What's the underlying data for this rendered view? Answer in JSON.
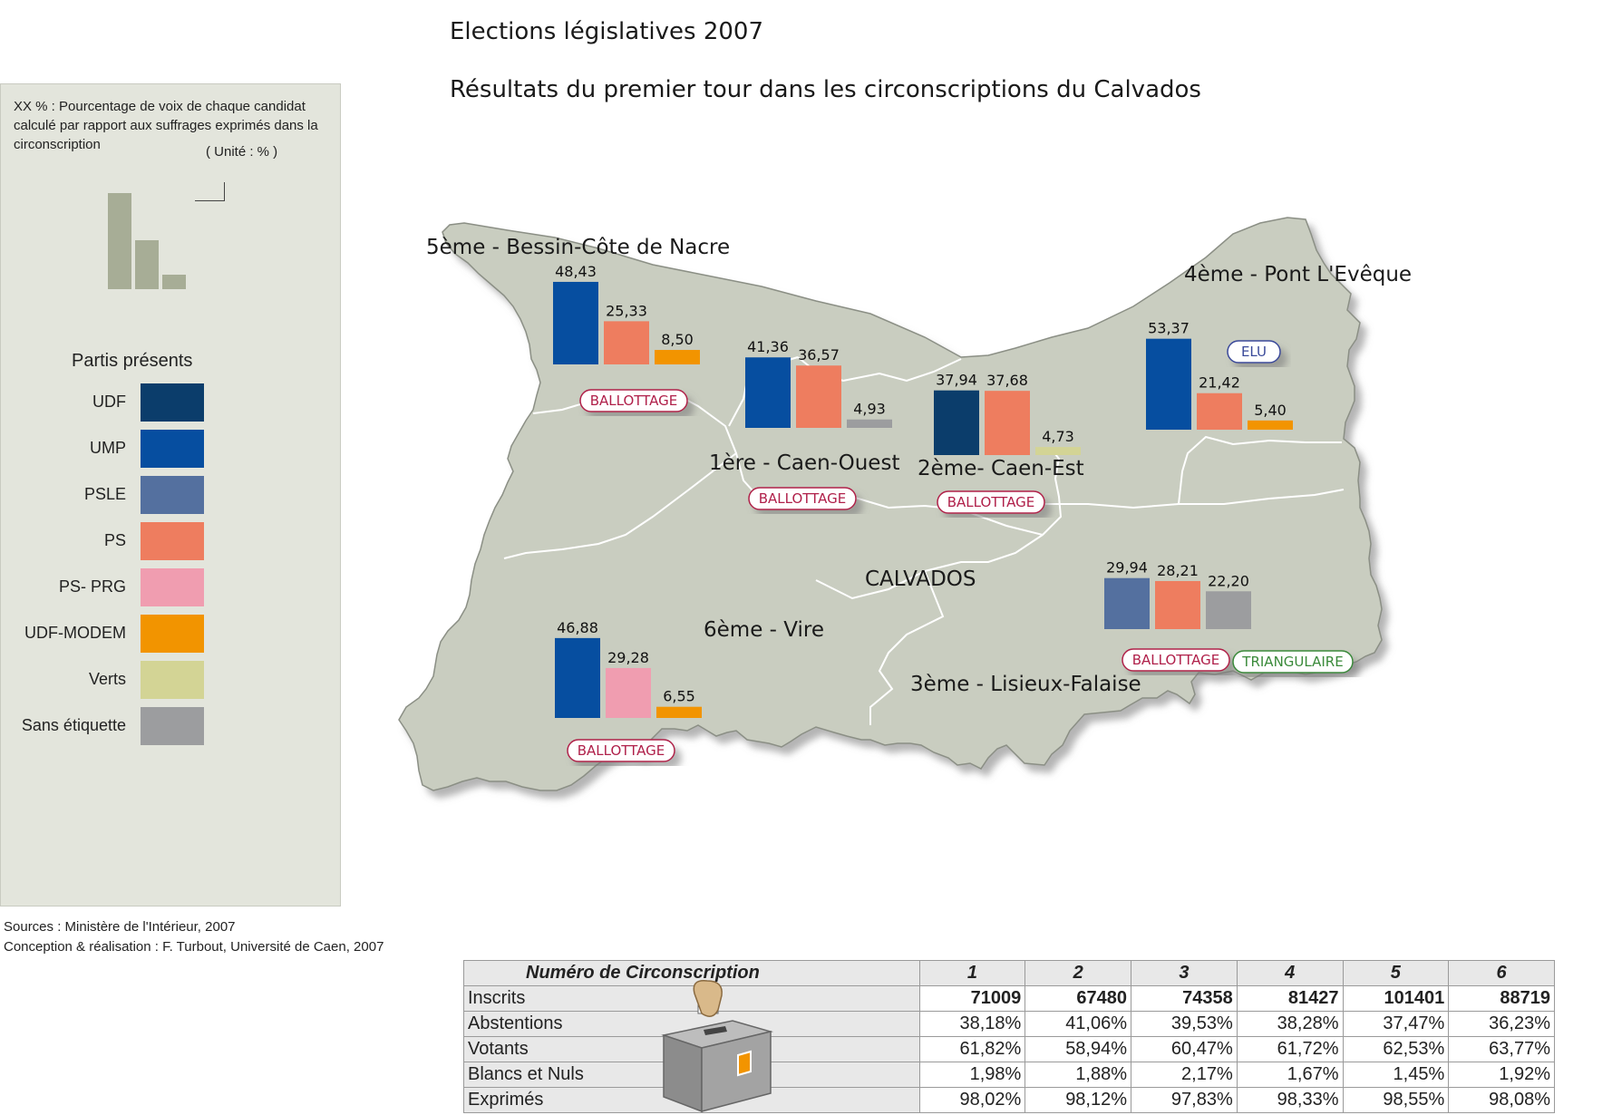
{
  "title": "Elections législatives 2007",
  "subtitle": "Résultats du premier tour dans les circonscriptions du Calvados",
  "legend": {
    "note": "XX % : Pourcentage de voix de chaque candidat calculé par rapport aux suffrages exprimés dans la circonscription",
    "unit": "( Unité : % )",
    "parties_title": "Partis présents",
    "parties": [
      {
        "name": "UDF",
        "color": "#0b3d6b"
      },
      {
        "name": "UMP",
        "color": "#064ea0"
      },
      {
        "name": "PSLE",
        "color": "#54709f"
      },
      {
        "name": "PS",
        "color": "#ee7d5f"
      },
      {
        "name": "PS- PRG",
        "color": "#f09db0"
      },
      {
        "name": "UDF-MODEM",
        "color": "#f29400"
      },
      {
        "name": "Verts",
        "color": "#d3d495"
      },
      {
        "name": "Sans étiquette",
        "color": "#9c9d9f"
      }
    ]
  },
  "sources": [
    "Sources : Ministère de l'Intérieur, 2007",
    "Conception & réalisation : F. Turbout, Université de Caen, 2007"
  ],
  "map": {
    "department": "CALVADOS",
    "land_color": "#c9cdc0",
    "districts": [
      {
        "name": "5ème - Bessin-Côte de Nacre",
        "status": "BALLOTTAGE",
        "bars": [
          {
            "party": "UMP",
            "value": 48.43,
            "label": "48,43"
          },
          {
            "party": "PS",
            "value": 25.33,
            "label": "25,33"
          },
          {
            "party": "UDF-MODEM",
            "value": 8.5,
            "label": "8,50"
          }
        ]
      },
      {
        "name": "1ère - Caen-Ouest",
        "status": "BALLOTTAGE",
        "bars": [
          {
            "party": "UMP",
            "value": 41.36,
            "label": "41,36"
          },
          {
            "party": "PS",
            "value": 36.57,
            "label": "36,57"
          },
          {
            "party": "Sans étiquette",
            "value": 4.93,
            "label": "4,93"
          }
        ]
      },
      {
        "name": "2ème- Caen-Est",
        "status": "BALLOTTAGE",
        "bars": [
          {
            "party": "UDF",
            "value": 37.94,
            "label": "37,94"
          },
          {
            "party": "PS",
            "value": 37.68,
            "label": "37,68"
          },
          {
            "party": "Verts",
            "value": 4.73,
            "label": "4,73"
          }
        ]
      },
      {
        "name": "4ème - Pont L'Evêque",
        "status": "ELU",
        "bars": [
          {
            "party": "UMP",
            "value": 53.37,
            "label": "53,37"
          },
          {
            "party": "PS",
            "value": 21.42,
            "label": "21,42"
          },
          {
            "party": "UDF-MODEM",
            "value": 5.4,
            "label": "5,40"
          }
        ]
      },
      {
        "name": "3ème - Lisieux-Falaise",
        "status": "BALLOTTAGE",
        "status2": "TRIANGULAIRE",
        "bars": [
          {
            "party": "PSLE",
            "value": 29.94,
            "label": "29,94"
          },
          {
            "party": "PS",
            "value": 28.21,
            "label": "28,21"
          },
          {
            "party": "Sans étiquette",
            "value": 22.2,
            "label": "22,20"
          }
        ]
      },
      {
        "name": "6ème - Vire",
        "status": "BALLOTTAGE",
        "bars": [
          {
            "party": "UMP",
            "value": 46.88,
            "label": "46,88"
          },
          {
            "party": "PS- PRG",
            "value": 29.28,
            "label": "29,28"
          },
          {
            "party": "UDF-MODEM",
            "value": 6.55,
            "label": "6,55"
          }
        ]
      }
    ]
  },
  "table": {
    "header": [
      "Numéro de Circonscription",
      "1",
      "2",
      "3",
      "4",
      "5",
      "6"
    ],
    "rows": [
      [
        "Inscrits",
        "71009",
        "67480",
        "74358",
        "81427",
        "101401",
        "88719"
      ],
      [
        "Abstentions",
        "38,18%",
        "41,06%",
        "39,53%",
        "38,28%",
        "37,47%",
        "36,23%"
      ],
      [
        "Votants",
        "61,82%",
        "58,94%",
        "60,47%",
        "61,72%",
        "62,53%",
        "63,77%"
      ],
      [
        "Blancs et Nuls",
        "1,98%",
        "1,88%",
        "2,17%",
        "1,67%",
        "1,45%",
        "1,92%"
      ],
      [
        "Exprimés",
        "98,02%",
        "98,12%",
        "97,83%",
        "98,33%",
        "98,55%",
        "98,08%"
      ]
    ]
  }
}
